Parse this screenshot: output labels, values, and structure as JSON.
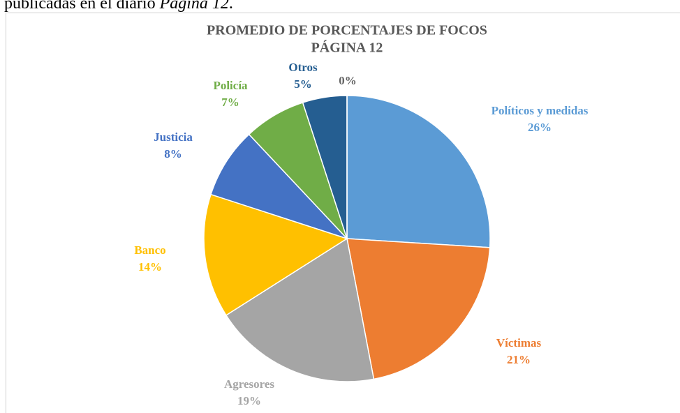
{
  "text_above": [
    "publicadas en el diario",
    "Página 12",
    "."
  ],
  "chart_data": {
    "type": "pie",
    "title": [
      "PROMEDIO DE PORCENTAJES DE FOCOS",
      "PÁGINA 12"
    ],
    "categories": [
      "Políticos y medidas",
      "Víctimas",
      "Agresores",
      "Banco",
      "Justicia",
      "Policía",
      "Otros",
      null
    ],
    "values": [
      26,
      21,
      19,
      14,
      8,
      7,
      5,
      0
    ],
    "value_labels": [
      "26%",
      "21%",
      "19%",
      "14%",
      "8%",
      "7%",
      "5%",
      "0%"
    ],
    "colors": [
      "#5b9bd5",
      "#ed7d31",
      "#a5a5a5",
      "#ffc000",
      "#4472c4",
      "#70ad47",
      "#255e91",
      "#636363"
    ]
  }
}
